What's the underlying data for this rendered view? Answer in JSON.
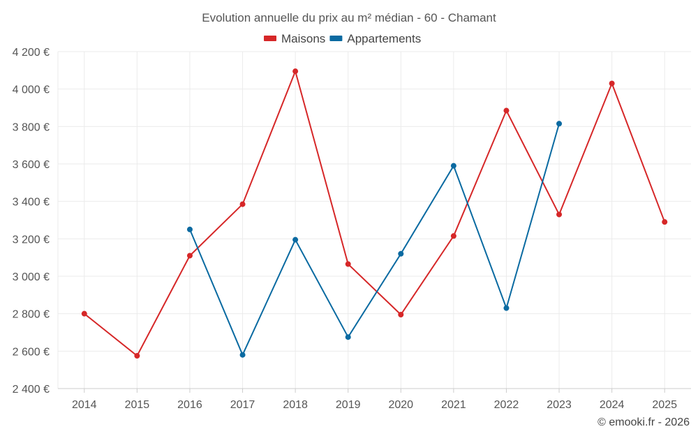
{
  "chart_data": {
    "type": "line",
    "title": "Evolution annuelle du prix au m² médian - 60 - Chamant",
    "categories": [
      "2014",
      "2015",
      "2016",
      "2017",
      "2018",
      "2019",
      "2020",
      "2021",
      "2022",
      "2023",
      "2024",
      "2025"
    ],
    "xlabel": "",
    "ylabel": "",
    "ylim": [
      2400,
      4200
    ],
    "yticks": [
      2400,
      2600,
      2800,
      3000,
      3200,
      3400,
      3600,
      3800,
      4000,
      4200
    ],
    "ytick_labels": [
      "2 400 €",
      "2 600 €",
      "2 800 €",
      "3 000 €",
      "3 200 €",
      "3 400 €",
      "3 600 €",
      "3 800 €",
      "4 000 €",
      "4 200 €"
    ],
    "grid": true,
    "legend_position": "top-center",
    "series": [
      {
        "name": "Maisons",
        "color": "#d62728",
        "values": [
          2800,
          2575,
          3110,
          3385,
          4095,
          3065,
          2795,
          3215,
          3885,
          3330,
          4030,
          3290
        ]
      },
      {
        "name": "Appartements",
        "color": "#0a6aa1",
        "values": [
          null,
          null,
          3250,
          2580,
          3195,
          2675,
          3120,
          3590,
          2830,
          3815,
          null,
          null
        ]
      }
    ]
  },
  "credit": "© emooki.fr - 2026"
}
